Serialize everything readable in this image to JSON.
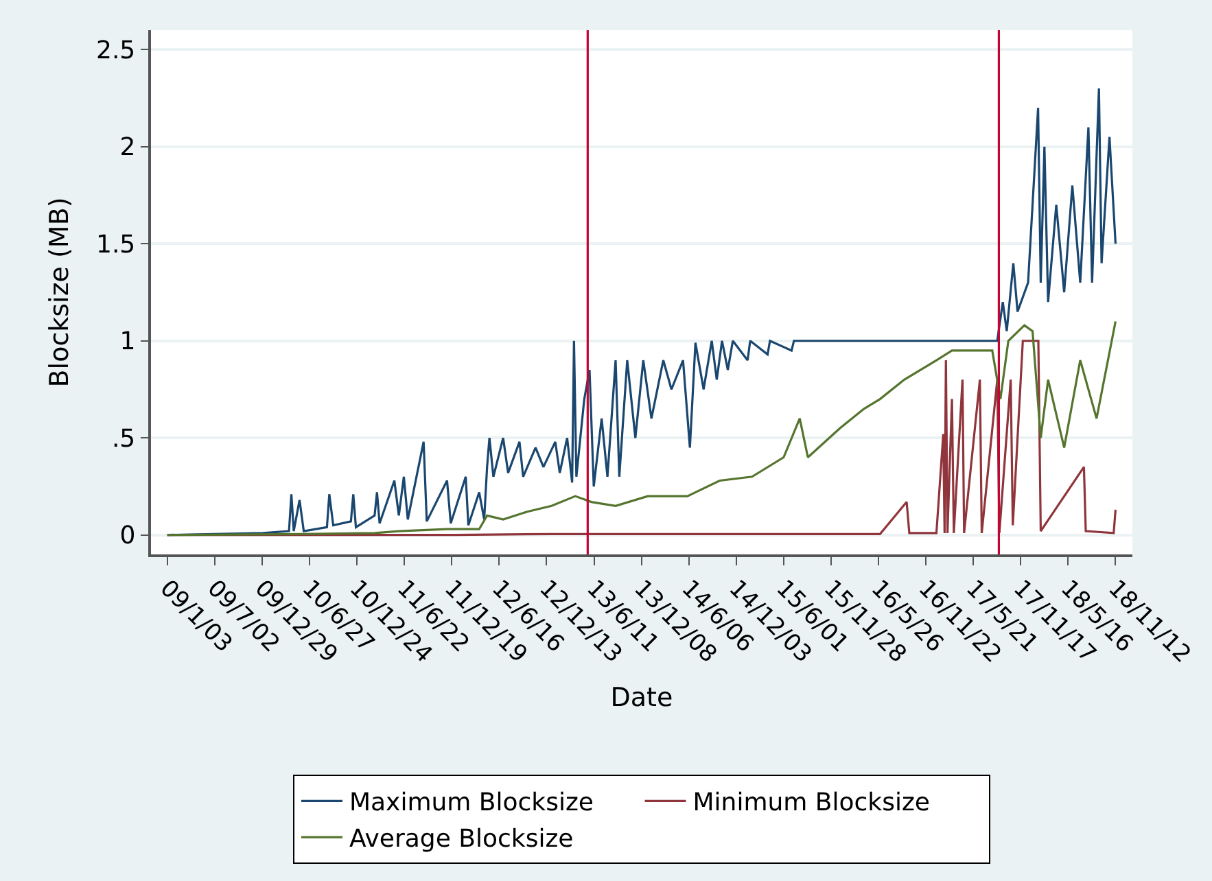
{
  "chart_data": {
    "type": "line",
    "xlabel": "Date",
    "ylabel": "Blocksize (MB)",
    "xlim": [
      "2008-11-02",
      "2019-01-15"
    ],
    "ylim": [
      -0.1,
      2.6
    ],
    "xticks": [
      {
        "value": "2009-01-03",
        "label": "09/1/03"
      },
      {
        "value": "2009-07-02",
        "label": "09/7/02"
      },
      {
        "value": "2009-12-29",
        "label": "09/12/29"
      },
      {
        "value": "2010-06-27",
        "label": "10/6/27"
      },
      {
        "value": "2010-12-24",
        "label": "10/12/24"
      },
      {
        "value": "2011-06-22",
        "label": "11/6/22"
      },
      {
        "value": "2011-12-19",
        "label": "11/12/19"
      },
      {
        "value": "2012-06-16",
        "label": "12/6/16"
      },
      {
        "value": "2012-12-13",
        "label": "12/12/13"
      },
      {
        "value": "2013-06-11",
        "label": "13/6/11"
      },
      {
        "value": "2013-12-08",
        "label": "13/12/08"
      },
      {
        "value": "2014-06-06",
        "label": "14/6/06"
      },
      {
        "value": "2014-12-03",
        "label": "14/12/03"
      },
      {
        "value": "2015-06-01",
        "label": "15/6/01"
      },
      {
        "value": "2015-11-28",
        "label": "15/11/28"
      },
      {
        "value": "2016-05-26",
        "label": "16/5/26"
      },
      {
        "value": "2016-11-22",
        "label": "16/11/22"
      },
      {
        "value": "2017-05-21",
        "label": "17/5/21"
      },
      {
        "value": "2017-11-17",
        "label": "17/11/17"
      },
      {
        "value": "2018-05-16",
        "label": "18/5/16"
      },
      {
        "value": "2018-11-12",
        "label": "18/11/12"
      }
    ],
    "yticks": [
      0,
      {
        "value": 0.5,
        "label": ".5"
      },
      1,
      1.5,
      2,
      2.5
    ],
    "grid": "y",
    "legend": "bottom",
    "line_style": "solid",
    "ref_lines": [
      {
        "axis": "x",
        "value": "2013-05-18",
        "color": "#c10534"
      },
      {
        "axis": "x",
        "value": "2017-08-26",
        "color": "#c10534"
      }
    ],
    "series": [
      {
        "name": "Maximum Blocksize",
        "color": "#1a476f",
        "x": [
          "2009-01-03",
          "2009-07-01",
          "2010-01-01",
          "2010-04-10",
          "2010-04-19",
          "2010-04-28",
          "2010-05-20",
          "2010-06-05",
          "2010-09-01",
          "2010-09-10",
          "2010-09-25",
          "2010-12-01",
          "2010-12-10",
          "2010-12-20",
          "2011-03-01",
          "2011-03-10",
          "2011-03-20",
          "2011-05-15",
          "2011-06-01",
          "2011-06-20",
          "2011-07-05",
          "2011-09-03",
          "2011-09-15",
          "2011-12-01",
          "2011-12-15",
          "2012-02-10",
          "2012-02-20",
          "2012-04-01",
          "2012-04-20",
          "2012-05-01",
          "2012-05-10",
          "2012-05-25",
          "2012-07-01",
          "2012-07-20",
          "2012-09-01",
          "2012-09-15",
          "2012-11-01",
          "2012-12-01",
          "2013-01-15",
          "2013-02-01",
          "2013-03-01",
          "2013-03-20",
          "2013-03-27",
          "2013-04-05",
          "2013-05-05",
          "2013-05-25",
          "2013-06-10",
          "2013-07-10",
          "2013-08-01",
          "2013-09-01",
          "2013-09-15",
          "2013-10-15",
          "2013-11-15",
          "2013-12-15",
          "2014-01-15",
          "2014-03-01",
          "2014-04-01",
          "2014-05-15",
          "2014-06-10",
          "2014-07-01",
          "2014-08-01",
          "2014-09-01",
          "2014-09-20",
          "2014-10-10",
          "2014-11-01",
          "2014-11-20",
          "2015-01-15",
          "2015-01-25",
          "2015-04-01",
          "2015-04-10",
          "2015-07-01",
          "2015-07-10",
          "2017-08-20",
          "2017-09-10",
          "2017-09-25",
          "2017-10-20",
          "2017-11-05",
          "2017-12-15",
          "2018-01-22",
          "2018-02-01",
          "2018-02-15",
          "2018-03-01",
          "2018-04-01",
          "2018-05-01",
          "2018-06-01",
          "2018-07-01",
          "2018-08-01",
          "2018-08-15",
          "2018-09-10",
          "2018-09-20",
          "2018-10-20",
          "2018-11-12"
        ],
        "values": [
          0,
          0.005,
          0.01,
          0.02,
          0.21,
          0.02,
          0.18,
          0.02,
          0.04,
          0.21,
          0.05,
          0.07,
          0.21,
          0.04,
          0.1,
          0.22,
          0.06,
          0.28,
          0.1,
          0.3,
          0.08,
          0.48,
          0.07,
          0.28,
          0.06,
          0.3,
          0.05,
          0.22,
          0.08,
          0.35,
          0.5,
          0.3,
          0.5,
          0.32,
          0.48,
          0.3,
          0.45,
          0.35,
          0.48,
          0.32,
          0.5,
          0.27,
          1.0,
          0.3,
          0.7,
          0.85,
          0.25,
          0.6,
          0.3,
          0.9,
          0.3,
          0.9,
          0.5,
          0.9,
          0.6,
          0.9,
          0.75,
          0.9,
          0.45,
          0.99,
          0.75,
          1.0,
          0.8,
          1.0,
          0.85,
          1.0,
          0.9,
          1.0,
          0.93,
          1.0,
          0.95,
          1.0,
          1.0,
          1.2,
          1.05,
          1.4,
          1.15,
          1.3,
          2.2,
          1.3,
          2.0,
          1.2,
          1.7,
          1.25,
          1.8,
          1.3,
          2.1,
          1.3,
          2.3,
          1.4,
          2.05,
          1.5
        ]
      },
      {
        "name": "Minimum Blocksize",
        "color": "#90353b",
        "x": [
          "2009-01-03",
          "2012-01-01",
          "2013-01-01",
          "2016-06-01",
          "2016-09-10",
          "2016-09-20",
          "2017-01-01",
          "2017-01-27",
          "2017-02-01",
          "2017-02-06",
          "2017-02-12",
          "2017-03-01",
          "2017-03-08",
          "2017-04-10",
          "2017-04-16",
          "2017-06-15",
          "2017-06-22",
          "2017-08-20",
          "2017-08-28",
          "2017-10-10",
          "2017-10-18",
          "2017-11-25",
          "2018-01-23",
          "2018-02-01",
          "2018-07-15",
          "2018-07-22",
          "2018-11-05",
          "2018-11-12"
        ],
        "values": [
          0,
          0,
          0.005,
          0.005,
          0.17,
          0.01,
          0.01,
          0.52,
          0.01,
          0.9,
          0.01,
          0.7,
          0.01,
          0.8,
          0.01,
          0.8,
          0.01,
          0.8,
          0.01,
          0.8,
          0.05,
          1.0,
          1.0,
          0.02,
          0.35,
          0.02,
          0.01,
          0.13
        ]
      },
      {
        "name": "Average Blocksize",
        "color": "#55752f",
        "x": [
          "2009-01-03",
          "2010-06-01",
          "2011-03-01",
          "2011-06-01",
          "2011-12-01",
          "2012-04-01",
          "2012-05-01",
          "2012-07-01",
          "2012-10-01",
          "2013-01-01",
          "2013-04-01",
          "2013-06-01",
          "2013-09-01",
          "2014-01-01",
          "2014-06-01",
          "2014-10-01",
          "2015-02-01",
          "2015-06-01",
          "2015-08-01",
          "2015-09-01",
          "2016-01-01",
          "2016-04-01",
          "2016-06-01",
          "2016-09-01",
          "2017-01-01",
          "2017-03-01",
          "2017-06-01",
          "2017-08-01",
          "2017-09-01",
          "2017-10-01",
          "2017-12-01",
          "2018-01-01",
          "2018-02-01",
          "2018-03-01",
          "2018-05-01",
          "2018-07-01",
          "2018-09-01",
          "2018-11-12"
        ],
        "values": [
          0,
          0.005,
          0.01,
          0.02,
          0.03,
          0.03,
          0.1,
          0.08,
          0.12,
          0.15,
          0.2,
          0.17,
          0.15,
          0.2,
          0.2,
          0.28,
          0.3,
          0.4,
          0.6,
          0.4,
          0.55,
          0.65,
          0.7,
          0.8,
          0.9,
          0.95,
          0.95,
          0.95,
          0.7,
          1.0,
          1.08,
          1.05,
          0.5,
          0.8,
          0.45,
          0.9,
          0.6,
          1.1
        ]
      }
    ]
  }
}
